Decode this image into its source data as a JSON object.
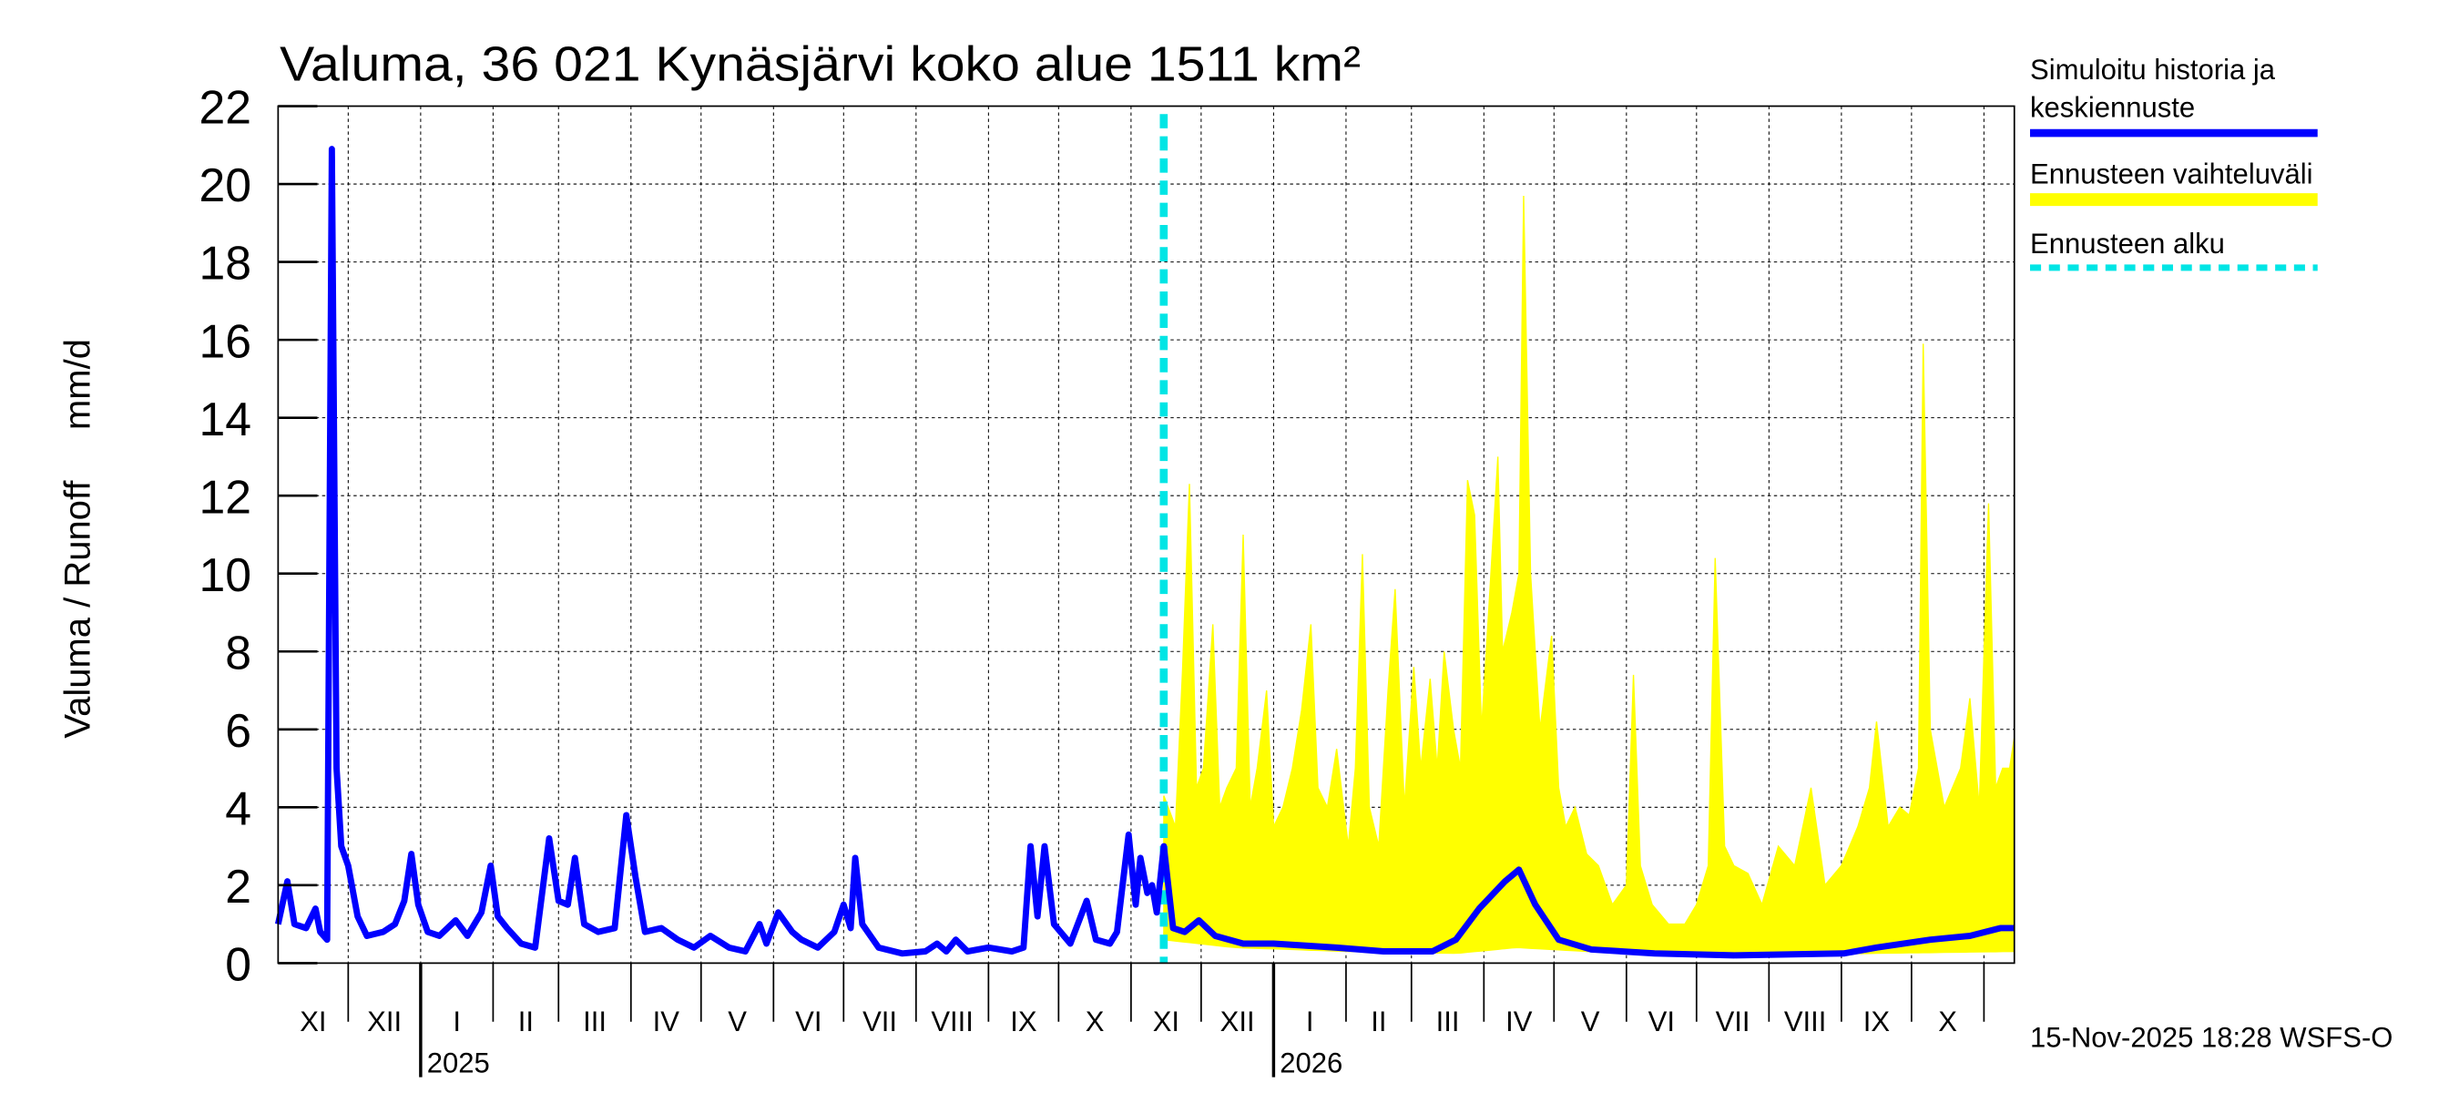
{
  "chart_data": {
    "type": "line",
    "title": "Valuma, 36 021 Kynäsjärvi koko alue 1511 km²",
    "ylabel": "Valuma / Runoff     mm/d",
    "xlabel": "",
    "ylim": [
      0,
      22
    ],
    "yticks": [
      "0",
      "2",
      "4",
      "6",
      "8",
      "10",
      "12",
      "14",
      "16",
      "18",
      "20",
      "22"
    ],
    "xlim": [
      "2024-11-01",
      "2026-11-14"
    ],
    "month_labels": [
      "XI",
      "XII",
      "I",
      "II",
      "III",
      "IV",
      "V",
      "VI",
      "VII",
      "VIII",
      "IX",
      "X",
      "XI",
      "XII",
      "I",
      "II",
      "III",
      "IV",
      "V",
      "VI",
      "VII",
      "VIII",
      "IX",
      "X"
    ],
    "year_labels": [
      {
        "label": "2025",
        "date": "2025-01-01"
      },
      {
        "label": "2026",
        "date": "2026-01-01"
      }
    ],
    "grid": true,
    "legend_placement": "right",
    "forecast_start": "2025-11-15",
    "colors": {
      "history": "#0000ff",
      "range": "#ffff00",
      "forecast_start": "#00e5e5"
    },
    "series": [
      {
        "name": "Simuloitu historia ja keskiennuste",
        "points": [
          [
            "2024-11-01",
            1.0
          ],
          [
            "2024-11-05",
            2.1
          ],
          [
            "2024-11-08",
            1.0
          ],
          [
            "2024-11-13",
            0.9
          ],
          [
            "2024-11-17",
            1.4
          ],
          [
            "2024-11-19",
            0.8
          ],
          [
            "2024-11-22",
            0.6
          ],
          [
            "2024-11-24",
            20.9
          ],
          [
            "2024-11-26",
            5.0
          ],
          [
            "2024-11-28",
            3.0
          ],
          [
            "2024-12-01",
            2.5
          ],
          [
            "2024-12-05",
            1.2
          ],
          [
            "2024-12-09",
            0.7
          ],
          [
            "2024-12-16",
            0.8
          ],
          [
            "2024-12-21",
            1.0
          ],
          [
            "2024-12-25",
            1.6
          ],
          [
            "2024-12-28",
            2.8
          ],
          [
            "2024-12-31",
            1.5
          ],
          [
            "2025-01-04",
            0.8
          ],
          [
            "2025-01-09",
            0.7
          ],
          [
            "2025-01-16",
            1.1
          ],
          [
            "2025-01-21",
            0.7
          ],
          [
            "2025-01-27",
            1.3
          ],
          [
            "2025-01-31",
            2.5
          ],
          [
            "2025-02-03",
            1.2
          ],
          [
            "2025-02-07",
            0.9
          ],
          [
            "2025-02-13",
            0.5
          ],
          [
            "2025-02-19",
            0.4
          ],
          [
            "2025-02-25",
            3.2
          ],
          [
            "2025-03-01",
            1.6
          ],
          [
            "2025-03-05",
            1.5
          ],
          [
            "2025-03-08",
            2.7
          ],
          [
            "2025-03-12",
            1.0
          ],
          [
            "2025-03-18",
            0.8
          ],
          [
            "2025-03-25",
            0.9
          ],
          [
            "2025-03-30",
            3.8
          ],
          [
            "2025-04-03",
            2.2
          ],
          [
            "2025-04-07",
            0.8
          ],
          [
            "2025-04-14",
            0.9
          ],
          [
            "2025-04-21",
            0.6
          ],
          [
            "2025-04-28",
            0.4
          ],
          [
            "2025-05-05",
            0.7
          ],
          [
            "2025-05-13",
            0.4
          ],
          [
            "2025-05-20",
            0.3
          ],
          [
            "2025-05-26",
            1.0
          ],
          [
            "2025-05-29",
            0.5
          ],
          [
            "2025-06-03",
            1.3
          ],
          [
            "2025-06-09",
            0.8
          ],
          [
            "2025-06-13",
            0.6
          ],
          [
            "2025-06-20",
            0.4
          ],
          [
            "2025-06-27",
            0.8
          ],
          [
            "2025-07-01",
            1.5
          ],
          [
            "2025-07-04",
            0.9
          ],
          [
            "2025-07-06",
            2.7
          ],
          [
            "2025-07-09",
            1.0
          ],
          [
            "2025-07-16",
            0.4
          ],
          [
            "2025-07-26",
            0.25
          ],
          [
            "2025-08-05",
            0.3
          ],
          [
            "2025-08-10",
            0.5
          ],
          [
            "2025-08-14",
            0.3
          ],
          [
            "2025-08-18",
            0.6
          ],
          [
            "2025-08-23",
            0.3
          ],
          [
            "2025-09-01",
            0.4
          ],
          [
            "2025-09-11",
            0.3
          ],
          [
            "2025-09-16",
            0.4
          ],
          [
            "2025-09-19",
            3.0
          ],
          [
            "2025-09-22",
            1.2
          ],
          [
            "2025-09-25",
            3.0
          ],
          [
            "2025-09-29",
            1.0
          ],
          [
            "2025-10-06",
            0.5
          ],
          [
            "2025-10-13",
            1.6
          ],
          [
            "2025-10-17",
            0.6
          ],
          [
            "2025-10-23",
            0.5
          ],
          [
            "2025-10-26",
            0.8
          ],
          [
            "2025-10-31",
            3.3
          ],
          [
            "2025-11-03",
            1.5
          ],
          [
            "2025-11-05",
            2.7
          ],
          [
            "2025-11-08",
            1.8
          ],
          [
            "2025-11-10",
            2.0
          ],
          [
            "2025-11-12",
            1.3
          ],
          [
            "2025-11-15",
            3.0
          ],
          [
            "2025-11-19",
            0.9
          ],
          [
            "2025-11-24",
            0.8
          ],
          [
            "2025-11-30",
            1.1
          ],
          [
            "2025-12-07",
            0.7
          ],
          [
            "2025-12-19",
            0.5
          ],
          [
            "2026-01-01",
            0.5
          ],
          [
            "2026-01-28",
            0.4
          ],
          [
            "2026-02-17",
            0.3
          ],
          [
            "2026-03-10",
            0.3
          ],
          [
            "2026-03-20",
            0.6
          ],
          [
            "2026-03-30",
            1.4
          ],
          [
            "2026-04-10",
            2.1
          ],
          [
            "2026-04-16",
            2.4
          ],
          [
            "2026-04-23",
            1.5
          ],
          [
            "2026-05-03",
            0.6
          ],
          [
            "2026-05-17",
            0.35
          ],
          [
            "2026-06-13",
            0.25
          ],
          [
            "2026-07-17",
            0.2
          ],
          [
            "2026-09-02",
            0.25
          ],
          [
            "2026-09-16",
            0.4
          ],
          [
            "2026-10-09",
            0.6
          ],
          [
            "2026-10-26",
            0.7
          ],
          [
            "2026-11-08",
            0.9
          ],
          [
            "2026-11-14",
            0.9
          ]
        ]
      },
      {
        "name": "Ennusteen vaihteluväli",
        "upper": [
          [
            "2025-11-15",
            4.3
          ],
          [
            "2025-11-20",
            3.5
          ],
          [
            "2025-11-23",
            7.5
          ],
          [
            "2025-11-26",
            12.3
          ],
          [
            "2025-11-29",
            4.5
          ],
          [
            "2025-12-02",
            5.0
          ],
          [
            "2025-12-06",
            8.7
          ],
          [
            "2025-12-09",
            4.0
          ],
          [
            "2025-12-12",
            4.5
          ],
          [
            "2025-12-16",
            5.0
          ],
          [
            "2025-12-19",
            11.0
          ],
          [
            "2025-12-22",
            4.0
          ],
          [
            "2025-12-25",
            5.0
          ],
          [
            "2025-12-29",
            7.0
          ],
          [
            "2026-01-01",
            3.5
          ],
          [
            "2026-01-05",
            4.0
          ],
          [
            "2026-01-09",
            5.0
          ],
          [
            "2026-01-13",
            6.5
          ],
          [
            "2026-01-17",
            8.7
          ],
          [
            "2026-01-20",
            4.5
          ],
          [
            "2026-01-24",
            4.0
          ],
          [
            "2026-01-28",
            5.5
          ],
          [
            "2026-02-02",
            3.0
          ],
          [
            "2026-02-05",
            5.0
          ],
          [
            "2026-02-08",
            10.5
          ],
          [
            "2026-02-11",
            4.0
          ],
          [
            "2026-02-15",
            3.0
          ],
          [
            "2026-02-19",
            7.0
          ],
          [
            "2026-02-22",
            9.6
          ],
          [
            "2026-02-26",
            4.0
          ],
          [
            "2026-03-02",
            7.6
          ],
          [
            "2026-03-05",
            5.0
          ],
          [
            "2026-03-09",
            7.3
          ],
          [
            "2026-03-12",
            5.0
          ],
          [
            "2026-03-15",
            8.0
          ],
          [
            "2026-03-19",
            6.0
          ],
          [
            "2026-03-22",
            5.0
          ],
          [
            "2026-03-25",
            12.4
          ],
          [
            "2026-03-28",
            11.5
          ],
          [
            "2026-03-31",
            6.0
          ],
          [
            "2026-04-03",
            9.0
          ],
          [
            "2026-04-07",
            13.0
          ],
          [
            "2026-04-09",
            8.0
          ],
          [
            "2026-04-13",
            9.0
          ],
          [
            "2026-04-16",
            10.0
          ],
          [
            "2026-04-18",
            19.7
          ],
          [
            "2026-04-21",
            10.0
          ],
          [
            "2026-04-25",
            6.0
          ],
          [
            "2026-04-30",
            8.4
          ],
          [
            "2026-05-03",
            4.5
          ],
          [
            "2026-05-06",
            3.5
          ],
          [
            "2026-05-10",
            4.0
          ],
          [
            "2026-05-15",
            2.8
          ],
          [
            "2026-05-20",
            2.5
          ],
          [
            "2026-05-26",
            1.5
          ],
          [
            "2026-06-01",
            2.0
          ],
          [
            "2026-06-04",
            7.4
          ],
          [
            "2026-06-07",
            2.5
          ],
          [
            "2026-06-12",
            1.5
          ],
          [
            "2026-06-19",
            1.0
          ],
          [
            "2026-06-26",
            1.0
          ],
          [
            "2026-07-01",
            1.5
          ],
          [
            "2026-07-06",
            2.5
          ],
          [
            "2026-07-09",
            10.4
          ],
          [
            "2026-07-13",
            3.0
          ],
          [
            "2026-07-17",
            2.5
          ],
          [
            "2026-07-23",
            2.3
          ],
          [
            "2026-07-29",
            1.5
          ],
          [
            "2026-08-05",
            3.0
          ],
          [
            "2026-08-12",
            2.5
          ],
          [
            "2026-08-19",
            4.5
          ],
          [
            "2026-08-25",
            2.0
          ],
          [
            "2026-09-01",
            2.5
          ],
          [
            "2026-09-08",
            3.5
          ],
          [
            "2026-09-13",
            4.5
          ],
          [
            "2026-09-16",
            6.2
          ],
          [
            "2026-09-21",
            3.5
          ],
          [
            "2026-09-26",
            4.0
          ],
          [
            "2026-09-30",
            3.8
          ],
          [
            "2026-10-04",
            5.0
          ],
          [
            "2026-10-06",
            15.9
          ],
          [
            "2026-10-09",
            6.0
          ],
          [
            "2026-10-15",
            4.0
          ],
          [
            "2026-10-22",
            5.0
          ],
          [
            "2026-10-26",
            6.8
          ],
          [
            "2026-10-30",
            4.0
          ],
          [
            "2026-11-03",
            11.8
          ],
          [
            "2026-11-06",
            4.5
          ],
          [
            "2026-11-09",
            5.0
          ],
          [
            "2026-11-12",
            5.0
          ],
          [
            "2026-11-14",
            5.8
          ]
        ],
        "lower": [
          [
            "2025-11-15",
            0.6
          ],
          [
            "2025-12-15",
            0.4
          ],
          [
            "2026-02-01",
            0.3
          ],
          [
            "2026-03-20",
            0.25
          ],
          [
            "2026-04-15",
            0.4
          ],
          [
            "2026-05-15",
            0.3
          ],
          [
            "2026-07-15",
            0.2
          ],
          [
            "2026-09-15",
            0.25
          ],
          [
            "2026-11-14",
            0.3
          ]
        ]
      },
      {
        "name": "Ennusteen alku"
      }
    ],
    "footer": "15-Nov-2025 18:28 WSFS-O"
  }
}
